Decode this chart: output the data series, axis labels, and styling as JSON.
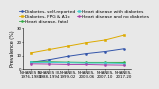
{
  "title": "",
  "ylabel": "Prevalence (%)",
  "x_labels": [
    "NHANES II,\n1976-1980",
    "NHANES III,\n1988-1994",
    "NHANES,\n1999-02",
    "NHANES,\n2003-06",
    "NHANES,\n2007-10",
    "NHANES,\n2017-20"
  ],
  "series": [
    {
      "label": "Diabetes, self-reported",
      "color": "#3355aa",
      "marker": "o",
      "values": [
        5.0,
        7.0,
        9.5,
        11.5,
        13.0,
        15.0
      ]
    },
    {
      "label": "Diabetes, FPG & A1c",
      "color": "#ddaa00",
      "marker": "s",
      "values": [
        12.0,
        14.5,
        17.0,
        19.5,
        21.5,
        25.0
      ]
    },
    {
      "label": "Heart disease, fatal",
      "color": "#33aa44",
      "marker": "o",
      "values": [
        5.5,
        5.5,
        5.2,
        5.0,
        5.0,
        5.0
      ]
    },
    {
      "label": "Heart disease with diabetes",
      "color": "#44cccc",
      "marker": "s",
      "values": [
        5.0,
        5.0,
        4.8,
        4.5,
        4.5,
        4.2
      ]
    },
    {
      "label": "Heart disease and no diabetes",
      "color": "#aa44aa",
      "marker": "o",
      "values": [
        4.0,
        3.8,
        3.5,
        3.5,
        3.2,
        3.0
      ]
    }
  ],
  "ylim": [
    0,
    30
  ],
  "yticks": [
    0,
    10,
    20,
    30
  ],
  "background_color": "#e8e8e8",
  "legend_fontsize": 3.2,
  "tick_fontsize": 2.8,
  "ylabel_fontsize": 3.5,
  "linewidth": 0.7,
  "markersize": 1.4
}
